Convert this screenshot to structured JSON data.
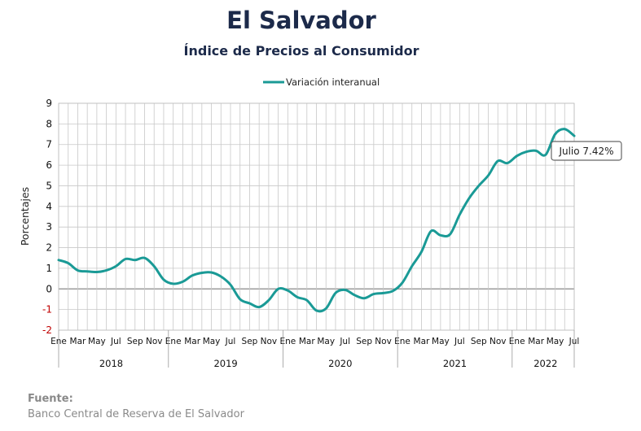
{
  "chart_data": {
    "type": "line",
    "title": "El Salvador",
    "subtitle": "Índice de Precios al Consumidor",
    "ylabel": "Porcentajes",
    "ylim": [
      -2,
      9
    ],
    "yticks": [
      -2,
      -1,
      0,
      1,
      2,
      3,
      4,
      5,
      6,
      7,
      8,
      9
    ],
    "grid": true,
    "legend_position": "top",
    "month_labels": [
      "Ene",
      "Mar",
      "May",
      "Jul",
      "Sep",
      "Nov"
    ],
    "years": [
      "2018",
      "2019",
      "2020",
      "2021",
      "2022"
    ],
    "x": [
      "Ene 2018",
      "Feb 2018",
      "Mar 2018",
      "Abr 2018",
      "May 2018",
      "Jun 2018",
      "Jul 2018",
      "Ago 2018",
      "Sep 2018",
      "Oct 2018",
      "Nov 2018",
      "Dic 2018",
      "Ene 2019",
      "Feb 2019",
      "Mar 2019",
      "Abr 2019",
      "May 2019",
      "Jun 2019",
      "Jul 2019",
      "Ago 2019",
      "Sep 2019",
      "Oct 2019",
      "Nov 2019",
      "Dic 2019",
      "Ene 2020",
      "Feb 2020",
      "Mar 2020",
      "Abr 2020",
      "May 2020",
      "Jun 2020",
      "Jul 2020",
      "Ago 2020",
      "Sep 2020",
      "Oct 2020",
      "Nov 2020",
      "Dic 2020",
      "Ene 2021",
      "Feb 2021",
      "Mar 2021",
      "Abr 2021",
      "May 2021",
      "Jun 2021",
      "Jul 2021",
      "Ago 2021",
      "Sep 2021",
      "Oct 2021",
      "Nov 2021",
      "Dic 2021",
      "Ene 2022",
      "Feb 2022",
      "Mar 2022",
      "Abr 2022",
      "May 2022",
      "Jun 2022",
      "Jul 2022"
    ],
    "series": [
      {
        "name": "Variación interanual",
        "color": "#1a9a96",
        "values": [
          1.4,
          1.25,
          0.9,
          0.85,
          0.82,
          0.9,
          1.1,
          1.45,
          1.4,
          1.5,
          1.1,
          0.45,
          0.25,
          0.35,
          0.65,
          0.78,
          0.8,
          0.6,
          0.2,
          -0.5,
          -0.7,
          -0.88,
          -0.55,
          0.0,
          -0.08,
          -0.4,
          -0.55,
          -1.05,
          -0.95,
          -0.2,
          -0.05,
          -0.3,
          -0.45,
          -0.25,
          -0.2,
          -0.1,
          0.3,
          1.1,
          1.8,
          2.8,
          2.6,
          2.65,
          3.6,
          4.4,
          5.0,
          5.5,
          6.2,
          6.1,
          6.45,
          6.65,
          6.7,
          6.5,
          7.5,
          7.75,
          7.42
        ]
      }
    ],
    "annotation": {
      "text": "Julio 7.42%",
      "point": "Jul 2022",
      "value": 7.42
    }
  },
  "source": {
    "label": "Fuente:",
    "text": "Banco Central de Reserva de El Salvador"
  }
}
